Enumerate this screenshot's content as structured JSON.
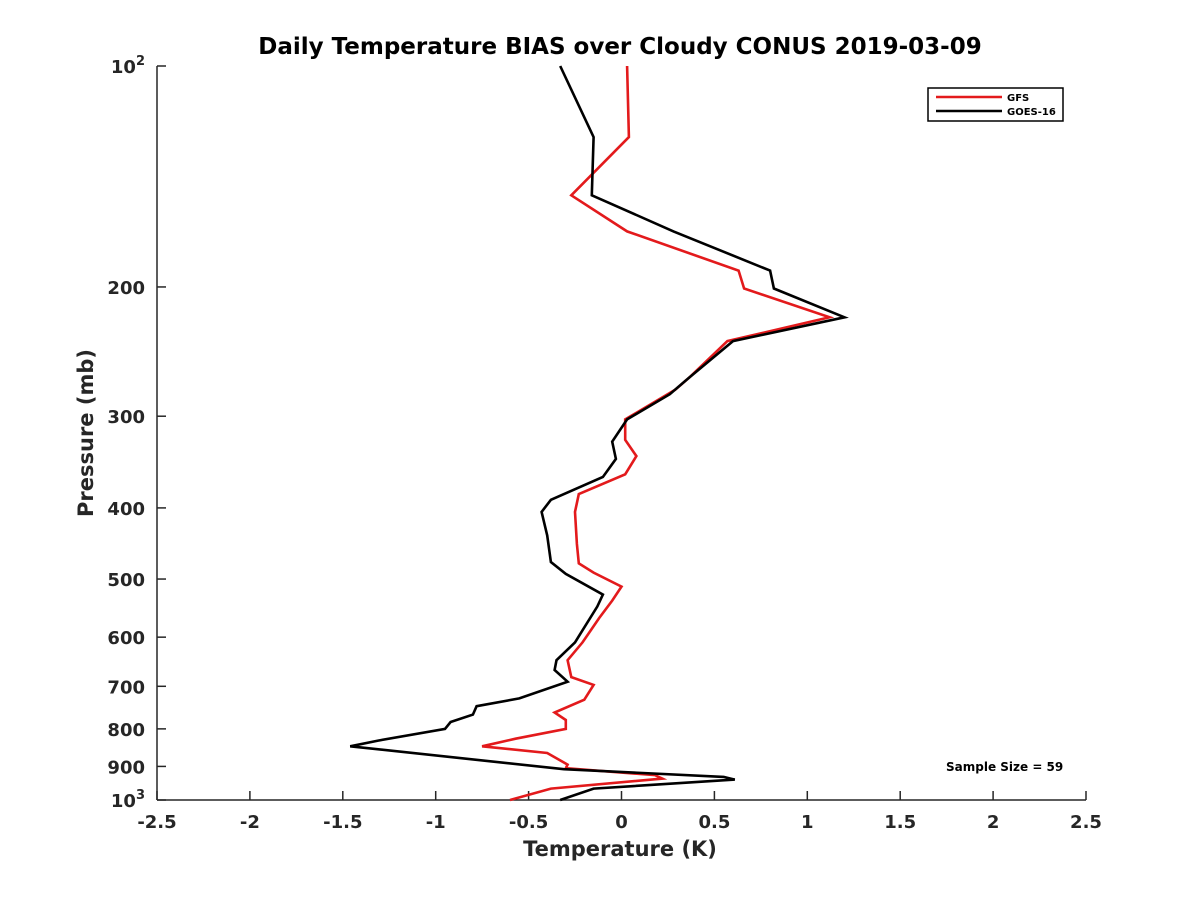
{
  "chart_data": {
    "type": "line",
    "title": "Daily Temperature BIAS over Cloudy CONUS 2019-03-09",
    "xlabel": "Temperature (K)",
    "ylabel": "Pressure (mb)",
    "xlim": [
      -2.5,
      2.5
    ],
    "ylim": [
      100,
      1000
    ],
    "y_scale": "log",
    "y_reversed": true,
    "x_ticks": [
      -2.5,
      -2,
      -1.5,
      -1,
      -0.5,
      0,
      0.5,
      1,
      1.5,
      2,
      2.5
    ],
    "x_tick_labels": [
      "-2.5",
      "-2",
      "-1.5",
      "-1",
      "-0.5",
      "0",
      "0.5",
      "1",
      "1.5",
      "2",
      "2.5"
    ],
    "y_ticks": [
      100,
      200,
      300,
      400,
      500,
      600,
      700,
      800,
      900,
      1000
    ],
    "y_tick_labels": [
      {
        "base": "10",
        "exp": "2"
      },
      {
        "base": "200"
      },
      {
        "base": "300"
      },
      {
        "base": "400"
      },
      {
        "base": "500"
      },
      {
        "base": "600"
      },
      {
        "base": "700"
      },
      {
        "base": "800"
      },
      {
        "base": "900"
      },
      {
        "base": "10",
        "exp": "3"
      }
    ],
    "grid": false,
    "legend_position": "top-right",
    "series": [
      {
        "name": "GFS",
        "color": "#e31a1c",
        "points": [
          [
            0.03,
            100
          ],
          [
            0.04,
            125
          ],
          [
            -0.27,
            150
          ],
          [
            0.03,
            168
          ],
          [
            0.63,
            190
          ],
          [
            0.66,
            201
          ],
          [
            1.12,
            220
          ],
          [
            0.57,
            237
          ],
          [
            0.37,
            265
          ],
          [
            0.29,
            276
          ],
          [
            0.02,
            303
          ],
          [
            0.02,
            323
          ],
          [
            0.08,
            340
          ],
          [
            0.02,
            360
          ],
          [
            -0.23,
            383
          ],
          [
            -0.25,
            405
          ],
          [
            -0.24,
            448
          ],
          [
            -0.23,
            476
          ],
          [
            -0.15,
            490
          ],
          [
            0.0,
            512
          ],
          [
            -0.05,
            535
          ],
          [
            -0.12,
            565
          ],
          [
            -0.21,
            610
          ],
          [
            -0.29,
            645
          ],
          [
            -0.27,
            680
          ],
          [
            -0.15,
            697
          ],
          [
            -0.2,
            730
          ],
          [
            -0.36,
            760
          ],
          [
            -0.3,
            778
          ],
          [
            -0.3,
            800
          ],
          [
            -0.57,
            825
          ],
          [
            -0.75,
            845
          ],
          [
            -0.4,
            863
          ],
          [
            -0.29,
            895
          ],
          [
            -0.3,
            905
          ],
          [
            0.18,
            925
          ],
          [
            0.22,
            935
          ],
          [
            -0.38,
            965
          ],
          [
            -0.6,
            1000
          ]
        ]
      },
      {
        "name": "GOES-16",
        "color": "#000000",
        "points": [
          [
            -0.33,
            100
          ],
          [
            -0.15,
            125
          ],
          [
            -0.16,
            150
          ],
          [
            0.28,
            168
          ],
          [
            0.8,
            190
          ],
          [
            0.82,
            201
          ],
          [
            1.2,
            220
          ],
          [
            0.6,
            237
          ],
          [
            0.37,
            265
          ],
          [
            0.26,
            280
          ],
          [
            0.03,
            303
          ],
          [
            -0.05,
            325
          ],
          [
            -0.03,
            343
          ],
          [
            -0.1,
            363
          ],
          [
            -0.38,
            390
          ],
          [
            -0.43,
            405
          ],
          [
            -0.4,
            436
          ],
          [
            -0.38,
            474
          ],
          [
            -0.3,
            492
          ],
          [
            -0.1,
            525
          ],
          [
            -0.13,
            545
          ],
          [
            -0.25,
            610
          ],
          [
            -0.35,
            645
          ],
          [
            -0.36,
            665
          ],
          [
            -0.29,
            690
          ],
          [
            -0.55,
            727
          ],
          [
            -0.78,
            745
          ],
          [
            -0.8,
            765
          ],
          [
            -0.92,
            783
          ],
          [
            -0.95,
            800
          ],
          [
            -1.31,
            830
          ],
          [
            -1.46,
            845
          ],
          [
            -0.31,
            908
          ],
          [
            0.55,
            930
          ],
          [
            0.61,
            938
          ],
          [
            -0.15,
            965
          ],
          [
            -0.33,
            1000
          ]
        ]
      }
    ],
    "annotations": [
      "Sample Size = 59"
    ]
  }
}
